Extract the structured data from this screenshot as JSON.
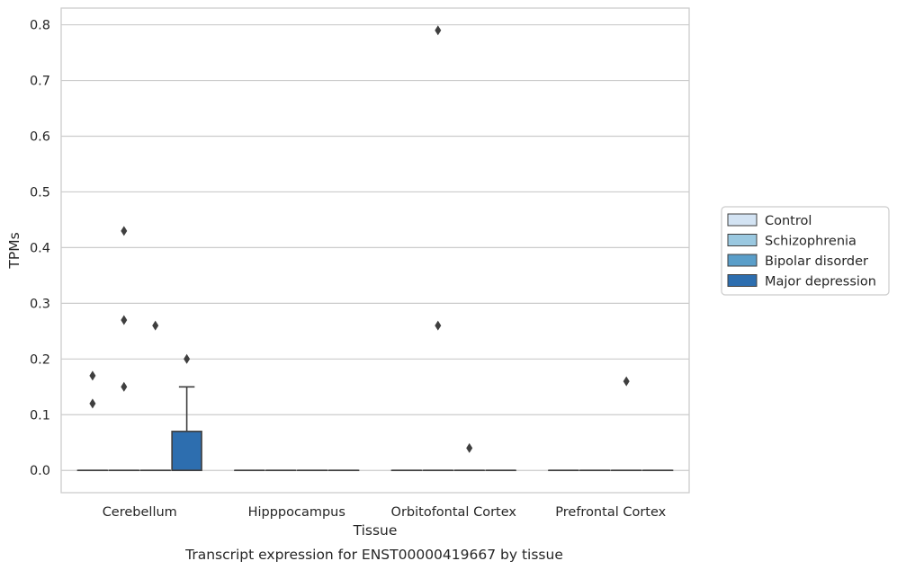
{
  "chart_data": {
    "type": "box",
    "title": "",
    "caption": "Transcript expression for ENST00000419667 by tissue",
    "xlabel": "Tissue",
    "ylabel": "TPMs",
    "ylim": [
      -0.04,
      0.83
    ],
    "yticks": [
      "0.0",
      "0.1",
      "0.2",
      "0.3",
      "0.4",
      "0.5",
      "0.6",
      "0.7",
      "0.8"
    ],
    "ytick_values": [
      0.0,
      0.1,
      0.2,
      0.3,
      0.4,
      0.5,
      0.6,
      0.7,
      0.8
    ],
    "grid": true,
    "legend_position": "right",
    "categories": [
      "Cerebellum",
      "Hipppocampus",
      "Orbitofontal Cortex",
      "Prefrontal Cortex"
    ],
    "series": [
      {
        "name": "Control",
        "color": "#d3e3f3",
        "boxes": [
          {
            "q1": 0,
            "median": 0,
            "q3": 0,
            "whisker_low": 0,
            "whisker_high": 0,
            "outliers": [
              0.12,
              0.17
            ]
          },
          {
            "q1": 0,
            "median": 0,
            "q3": 0,
            "whisker_low": 0,
            "whisker_high": 0,
            "outliers": []
          },
          {
            "q1": 0,
            "median": 0,
            "q3": 0,
            "whisker_low": 0,
            "whisker_high": 0,
            "outliers": []
          },
          {
            "q1": 0,
            "median": 0,
            "q3": 0,
            "whisker_low": 0,
            "whisker_high": 0,
            "outliers": []
          }
        ]
      },
      {
        "name": "Schizophrenia",
        "color": "#9ac8e0",
        "boxes": [
          {
            "q1": 0,
            "median": 0,
            "q3": 0,
            "whisker_low": 0,
            "whisker_high": 0,
            "outliers": [
              0.15,
              0.27,
              0.43
            ]
          },
          {
            "q1": 0,
            "median": 0,
            "q3": 0,
            "whisker_low": 0,
            "whisker_high": 0,
            "outliers": []
          },
          {
            "q1": 0,
            "median": 0,
            "q3": 0,
            "whisker_low": 0,
            "whisker_high": 0,
            "outliers": [
              0.26,
              0.79
            ]
          },
          {
            "q1": 0,
            "median": 0,
            "q3": 0,
            "whisker_low": 0,
            "whisker_high": 0,
            "outliers": []
          }
        ]
      },
      {
        "name": "Bipolar disorder",
        "color": "#5a9ec9",
        "boxes": [
          {
            "q1": 0,
            "median": 0,
            "q3": 0,
            "whisker_low": 0,
            "whisker_high": 0,
            "outliers": [
              0.26
            ]
          },
          {
            "q1": 0,
            "median": 0,
            "q3": 0,
            "whisker_low": 0,
            "whisker_high": 0,
            "outliers": []
          },
          {
            "q1": 0,
            "median": 0,
            "q3": 0,
            "whisker_low": 0,
            "whisker_high": 0,
            "outliers": [
              0.04
            ]
          },
          {
            "q1": 0,
            "median": 0,
            "q3": 0,
            "whisker_low": 0,
            "whisker_high": 0,
            "outliers": [
              0.16
            ]
          }
        ]
      },
      {
        "name": "Major depression",
        "color": "#2d6eaf",
        "boxes": [
          {
            "q1": 0,
            "median": 0,
            "q3": 0.07,
            "whisker_low": 0,
            "whisker_high": 0.15,
            "outliers": [
              0.2
            ]
          },
          {
            "q1": 0,
            "median": 0,
            "q3": 0,
            "whisker_low": 0,
            "whisker_high": 0,
            "outliers": []
          },
          {
            "q1": 0,
            "median": 0,
            "q3": 0,
            "whisker_low": 0,
            "whisker_high": 0,
            "outliers": []
          },
          {
            "q1": 0,
            "median": 0,
            "q3": 0,
            "whisker_low": 0,
            "whisker_high": 0,
            "outliers": []
          }
        ]
      }
    ],
    "colors": {
      "grid": "#cccccc",
      "frame": "#cccccc",
      "line": "#3f3f3f",
      "text": "#262626"
    }
  }
}
